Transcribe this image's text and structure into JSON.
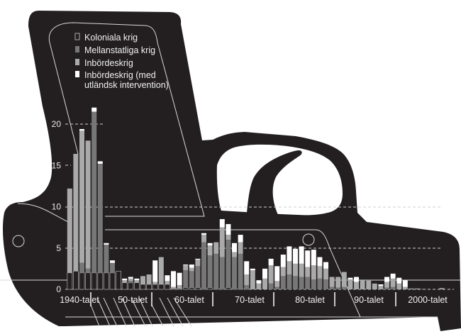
{
  "chart_data": {
    "type": "bar",
    "stacked": true,
    "title": "",
    "xlabel": "",
    "ylabel": "",
    "ylim": [
      0,
      22
    ],
    "yticks": [
      0,
      5,
      10,
      15,
      20
    ],
    "grid": "dashed horizontal at 5, 10, 15, 20",
    "legend_position": "top-left",
    "decade_labels": [
      "1940-talet",
      "50-talet",
      "60-talet",
      "70-talet",
      "80-talet",
      "90-talet",
      "2000-talet"
    ],
    "x": [
      1946,
      1947,
      1948,
      1949,
      1950,
      1951,
      1952,
      1953,
      1954,
      1955,
      1956,
      1957,
      1958,
      1959,
      1960,
      1961,
      1962,
      1963,
      1964,
      1965,
      1966,
      1967,
      1968,
      1969,
      1970,
      1971,
      1972,
      1973,
      1974,
      1975,
      1976,
      1977,
      1978,
      1979,
      1980,
      1981,
      1982,
      1983,
      1984,
      1985,
      1986,
      1987,
      1988,
      1989,
      1990,
      1991,
      1992,
      1993,
      1994,
      1995,
      1996,
      1997,
      1998,
      1999,
      2000,
      2001,
      2002,
      2003,
      2004,
      2005,
      2006,
      2007
    ],
    "series": [
      {
        "name": "Koloniala krig",
        "color": "#231f20",
        "values": [
          2,
          2.2,
          2,
          2,
          2,
          2,
          2,
          2,
          2.2,
          0.8,
          0.8,
          0.8,
          0.6,
          0.6,
          0.6,
          0.6,
          0.6,
          0.1,
          0.1,
          0.2,
          0.2,
          0.2,
          0.1,
          0.2,
          0.1,
          0.1,
          0.2,
          0.1,
          0.1,
          0.1,
          0,
          0,
          0,
          0,
          0,
          0,
          0,
          0,
          0,
          0,
          0,
          0,
          0,
          0,
          0,
          0,
          0,
          0,
          0,
          0,
          0,
          0,
          0,
          0,
          0,
          0,
          0,
          0,
          0,
          0,
          0,
          0
        ]
      },
      {
        "name": "Mellanstatliga krig",
        "color": "#777777",
        "values": [
          0,
          0,
          1.2,
          0.5,
          19.5,
          13.2,
          3.4,
          1.2,
          0,
          0,
          0.2,
          0,
          0,
          0,
          0,
          0,
          0,
          0,
          0,
          2.1,
          2,
          2.6,
          5.6,
          3.9,
          4.2,
          3.8,
          5.8,
          3.8,
          4.2,
          0.4,
          0,
          0,
          0,
          0.7,
          0.3,
          1.6,
          1.8,
          1.6,
          1.5,
          1.5,
          1.2,
          1.3,
          1.2,
          0.3,
          0.2,
          0.3,
          0,
          0,
          0,
          0,
          0,
          0,
          0.2,
          0.3,
          0,
          0,
          0,
          0,
          0,
          0,
          0,
          0
        ]
      },
      {
        "name": "Inbördeskrig",
        "color": "#aaaaaa",
        "values": [
          10.2,
          14.2,
          16,
          15.5,
          0,
          0,
          0,
          0,
          0,
          0.3,
          0.3,
          0.3,
          1,
          1.2,
          0.3,
          3.3,
          0.4,
          0.2,
          0.4,
          0.6,
          0.4,
          0.8,
          0.9,
          1.2,
          1.4,
          3.6,
          0.6,
          0.6,
          1.4,
          1.3,
          2.3,
          0.7,
          1.3,
          2.2,
          0.7,
          1.1,
          1.6,
          1.5,
          1.6,
          1.2,
          1.7,
          1.5,
          1.3,
          1.2,
          1.3,
          1.8,
          1.2,
          0.9,
          1.1,
          1.05,
          0.7,
          0.4,
          0.7,
          1,
          0.7,
          0.3,
          0.1,
          0.1,
          0.05,
          0,
          0,
          0.15
        ]
      },
      {
        "name": "Inbördeskrig (med utländsk intervention)",
        "color": "#ffffff",
        "values": [
          0,
          0,
          0.2,
          0,
          0.5,
          0.3,
          0.2,
          0.3,
          0,
          0.2,
          0.2,
          0.2,
          0,
          0,
          2.6,
          0,
          0.7,
          1.9,
          1.5,
          0.1,
          0.4,
          0.1,
          0.2,
          0.3,
          0,
          1,
          1.3,
          1.1,
          0.9,
          1.6,
          0.2,
          0.4,
          1.2,
          0.8,
          1.8,
          1.5,
          1.8,
          1.8,
          2.1,
          2,
          1.9,
          1.1,
          0.8,
          0,
          0,
          0,
          0.2,
          0.6,
          0,
          0,
          0,
          0.2,
          0.6,
          0.6,
          0.7,
          0.8,
          0,
          0,
          0,
          0,
          0,
          0
        ]
      }
    ]
  },
  "legend": {
    "items": [
      "Koloniala krig",
      "Mellanstatliga krig",
      "Inbördeskrig",
      "Inbördeskrig (med"
    ],
    "item4_line2": "utländsk intervention)"
  },
  "colors": {
    "silhouette": "#231f20",
    "background": "#ffffff"
  }
}
